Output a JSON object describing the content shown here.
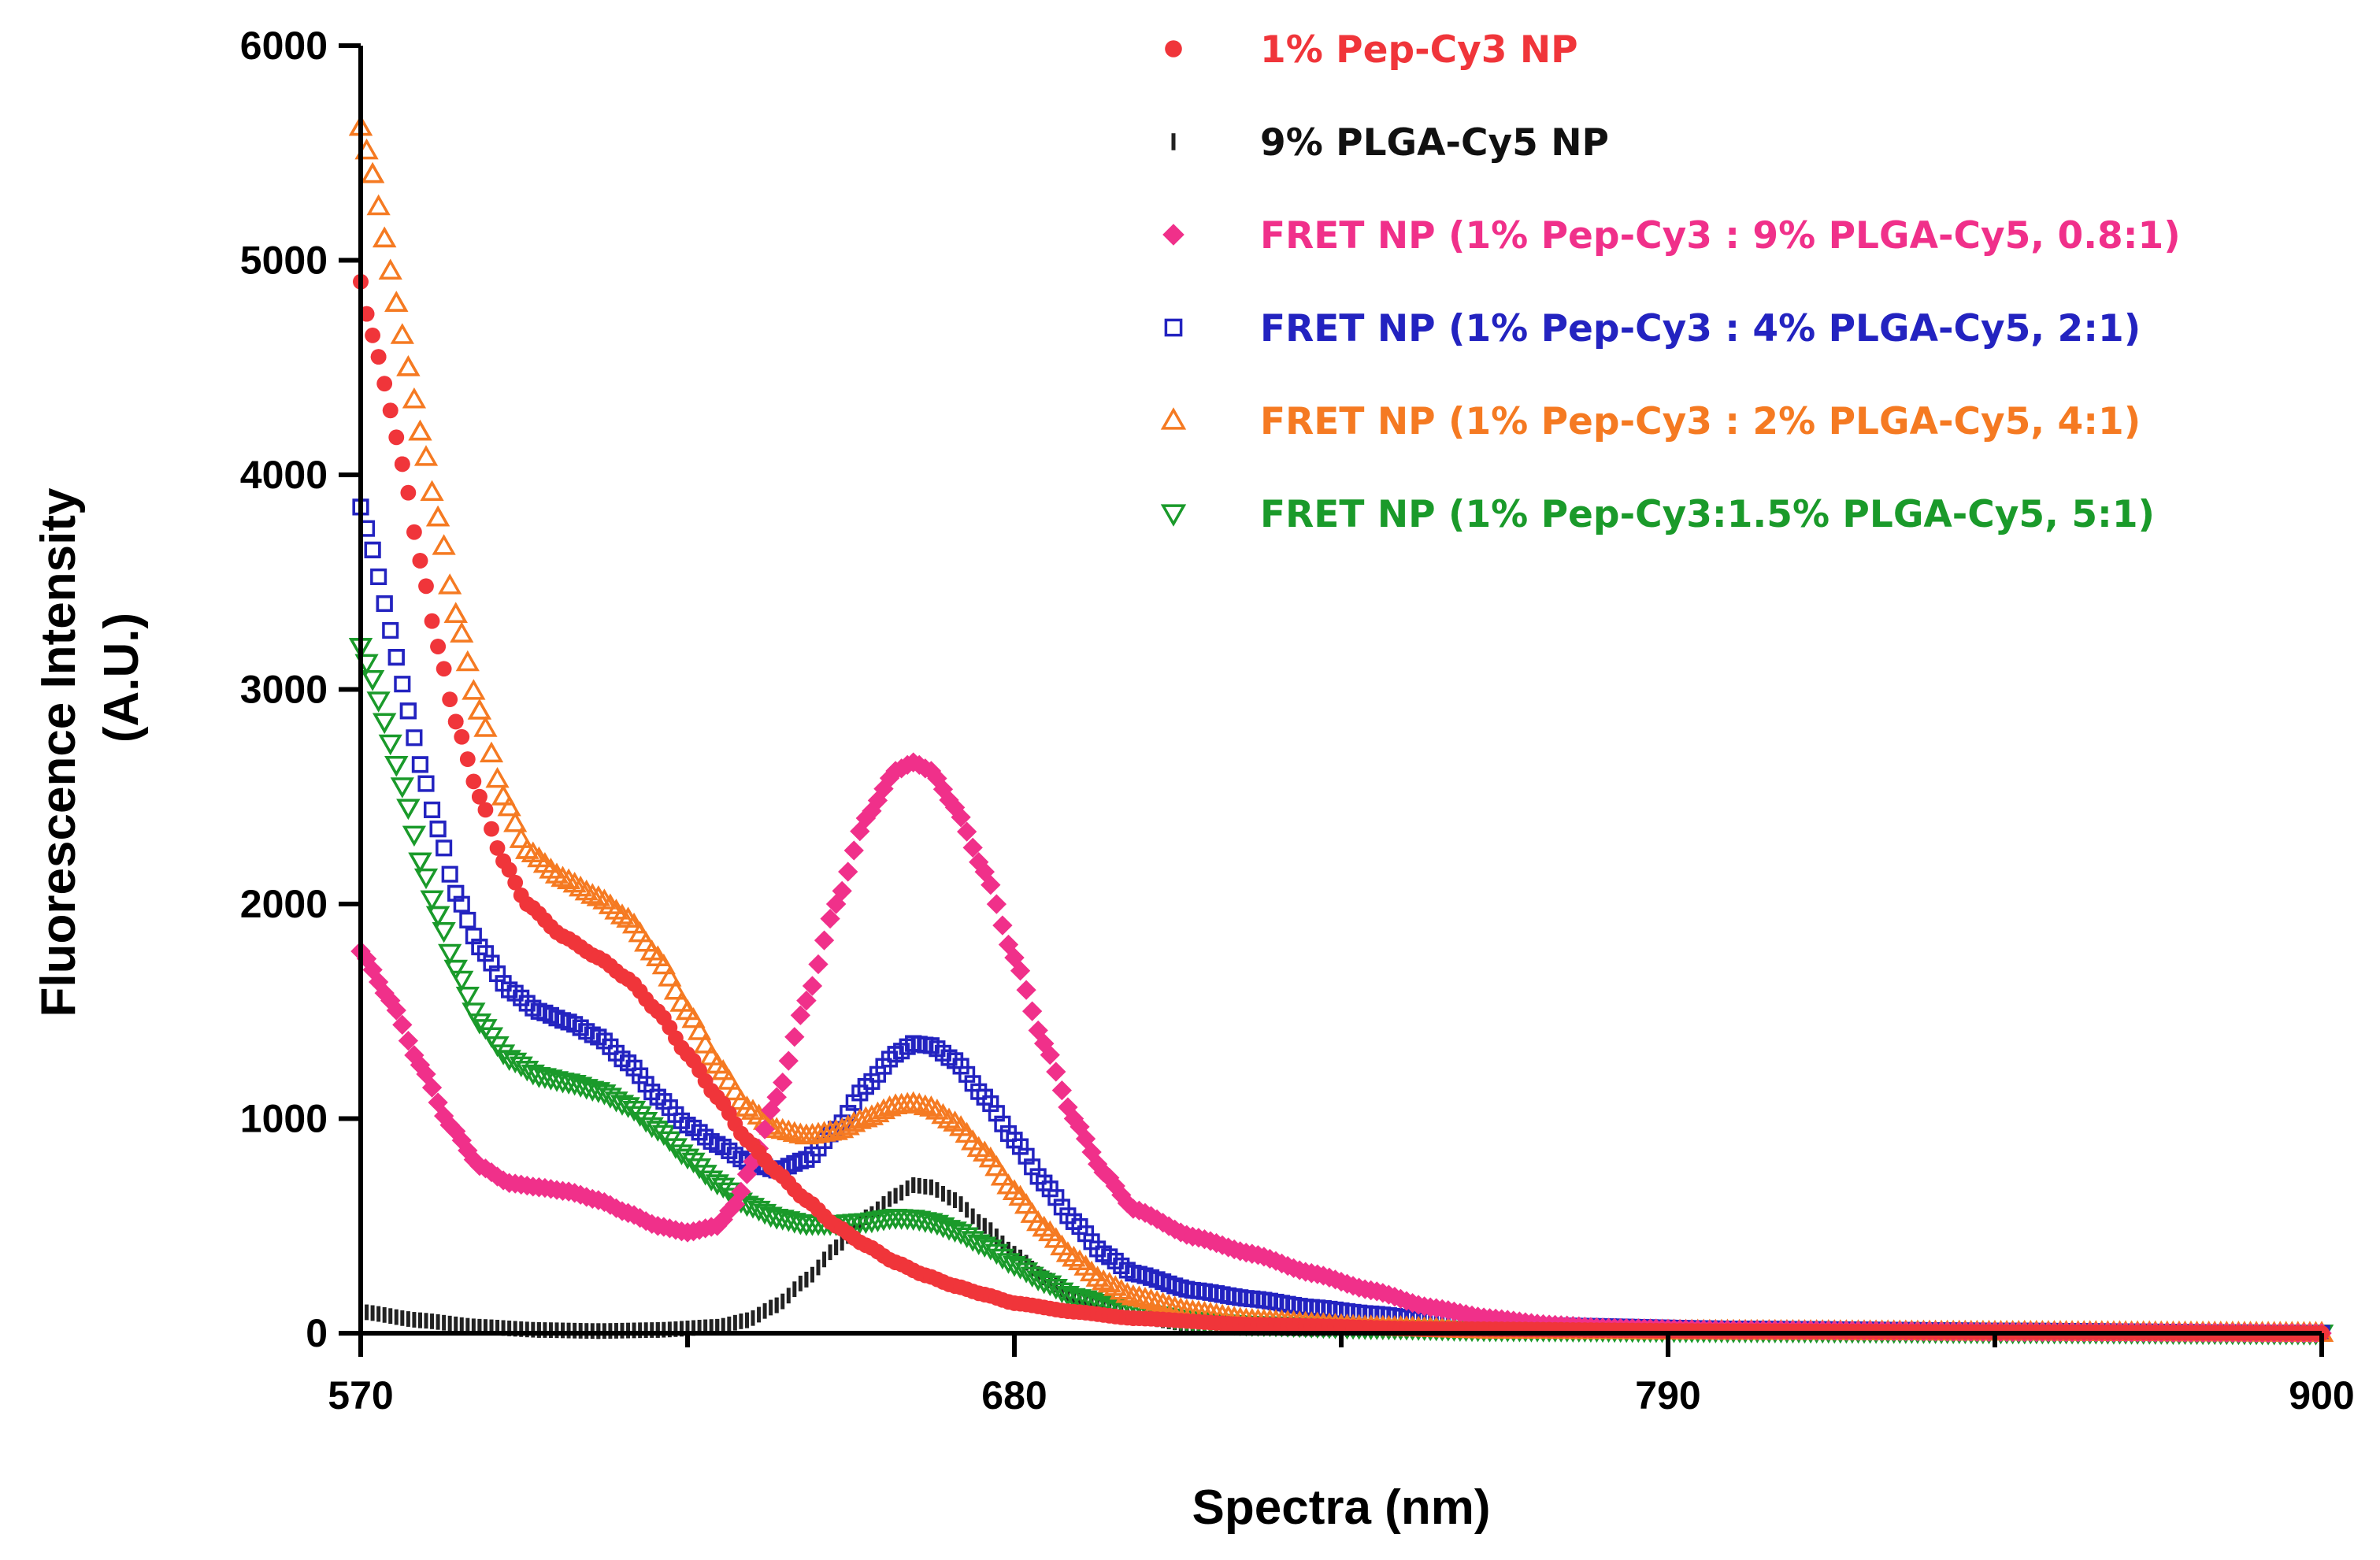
{
  "chart_data": {
    "type": "scatter",
    "title": "",
    "xlabel": "Spectra (nm)",
    "ylabel": "Fluorescence Intensity",
    "ylabel_unit": "(A.U.)",
    "xlim": [
      570,
      900
    ],
    "ylim": [
      0,
      6000
    ],
    "x_ticks": [
      570,
      680,
      790,
      900
    ],
    "x_ticks_minor": [
      625,
      735,
      845
    ],
    "y_ticks": [
      0,
      1000,
      2000,
      3000,
      4000,
      5000,
      6000
    ],
    "grid": false,
    "legend_position": "top-right",
    "series": [
      {
        "name": "1% Pep-Cy3 NP",
        "color": "#f0353a",
        "marker": "circle",
        "points": [
          [
            570,
            4900
          ],
          [
            571,
            4750
          ],
          [
            573,
            4550
          ],
          [
            575,
            4300
          ],
          [
            577,
            4050
          ],
          [
            580,
            3600
          ],
          [
            583,
            3200
          ],
          [
            586,
            2850
          ],
          [
            590,
            2500
          ],
          [
            594,
            2200
          ],
          [
            598,
            2000
          ],
          [
            604,
            1850
          ],
          [
            610,
            1750
          ],
          [
            615,
            1650
          ],
          [
            620,
            1500
          ],
          [
            625,
            1300
          ],
          [
            630,
            1100
          ],
          [
            635,
            900
          ],
          [
            640,
            750
          ],
          [
            645,
            620
          ],
          [
            650,
            500
          ],
          [
            655,
            410
          ],
          [
            660,
            330
          ],
          [
            665,
            270
          ],
          [
            670,
            220
          ],
          [
            675,
            180
          ],
          [
            680,
            140
          ],
          [
            690,
            100
          ],
          [
            700,
            70
          ],
          [
            720,
            40
          ],
          [
            750,
            20
          ],
          [
            800,
            10
          ],
          [
            850,
            5
          ],
          [
            900,
            0
          ]
        ]
      },
      {
        "name": "9% PLGA-Cy5 NP",
        "color": "#222222",
        "marker": "tick",
        "points": [
          [
            570,
            100
          ],
          [
            580,
            60
          ],
          [
            590,
            30
          ],
          [
            600,
            15
          ],
          [
            610,
            10
          ],
          [
            620,
            15
          ],
          [
            630,
            30
          ],
          [
            635,
            60
          ],
          [
            640,
            130
          ],
          [
            645,
            250
          ],
          [
            650,
            400
          ],
          [
            655,
            540
          ],
          [
            660,
            640
          ],
          [
            663,
            690
          ],
          [
            666,
            680
          ],
          [
            670,
            620
          ],
          [
            675,
            500
          ],
          [
            680,
            370
          ],
          [
            685,
            260
          ],
          [
            690,
            170
          ],
          [
            700,
            80
          ],
          [
            710,
            40
          ],
          [
            730,
            20
          ],
          [
            760,
            10
          ],
          [
            800,
            5
          ],
          [
            900,
            0
          ]
        ]
      },
      {
        "name": "FRET NP (1% Pep-Cy3 : 9% PLGA-Cy5, 0.8:1)",
        "color": "#f0308a",
        "marker": "diamond",
        "points": [
          [
            570,
            1780
          ],
          [
            575,
            1550
          ],
          [
            580,
            1250
          ],
          [
            585,
            970
          ],
          [
            590,
            780
          ],
          [
            595,
            700
          ],
          [
            600,
            680
          ],
          [
            605,
            660
          ],
          [
            610,
            620
          ],
          [
            615,
            560
          ],
          [
            620,
            500
          ],
          [
            625,
            470
          ],
          [
            630,
            500
          ],
          [
            633,
            600
          ],
          [
            636,
            800
          ],
          [
            640,
            1100
          ],
          [
            645,
            1550
          ],
          [
            650,
            2000
          ],
          [
            655,
            2400
          ],
          [
            660,
            2620
          ],
          [
            663,
            2660
          ],
          [
            666,
            2620
          ],
          [
            670,
            2450
          ],
          [
            675,
            2150
          ],
          [
            680,
            1750
          ],
          [
            685,
            1350
          ],
          [
            690,
            1000
          ],
          [
            695,
            750
          ],
          [
            700,
            580
          ],
          [
            710,
            450
          ],
          [
            720,
            370
          ],
          [
            730,
            280
          ],
          [
            740,
            200
          ],
          [
            750,
            120
          ],
          [
            760,
            70
          ],
          [
            770,
            40
          ],
          [
            780,
            25
          ],
          [
            800,
            15
          ],
          [
            850,
            5
          ],
          [
            900,
            0
          ]
        ]
      },
      {
        "name": "FRET NP (1% Pep-Cy3 : 4% PLGA-Cy5, 2:1)",
        "color": "#2323c0",
        "marker": "square",
        "points": [
          [
            570,
            3850
          ],
          [
            572,
            3650
          ],
          [
            574,
            3400
          ],
          [
            576,
            3150
          ],
          [
            578,
            2900
          ],
          [
            580,
            2650
          ],
          [
            583,
            2350
          ],
          [
            586,
            2050
          ],
          [
            590,
            1800
          ],
          [
            595,
            1600
          ],
          [
            600,
            1500
          ],
          [
            605,
            1450
          ],
          [
            610,
            1380
          ],
          [
            615,
            1260
          ],
          [
            620,
            1100
          ],
          [
            625,
            970
          ],
          [
            630,
            880
          ],
          [
            635,
            800
          ],
          [
            640,
            760
          ],
          [
            645,
            810
          ],
          [
            650,
            950
          ],
          [
            655,
            1150
          ],
          [
            660,
            1300
          ],
          [
            663,
            1350
          ],
          [
            666,
            1340
          ],
          [
            670,
            1270
          ],
          [
            675,
            1100
          ],
          [
            680,
            900
          ],
          [
            685,
            700
          ],
          [
            690,
            520
          ],
          [
            695,
            370
          ],
          [
            700,
            280
          ],
          [
            710,
            200
          ],
          [
            720,
            160
          ],
          [
            730,
            120
          ],
          [
            740,
            90
          ],
          [
            750,
            60
          ],
          [
            770,
            35
          ],
          [
            800,
            20
          ],
          [
            850,
            10
          ],
          [
            900,
            0
          ]
        ]
      },
      {
        "name": "FRET NP (1% Pep-Cy3 : 2% PLGA-Cy5, 4:1)",
        "color": "#f57a22",
        "marker": "triangle-up",
        "points": [
          [
            570,
            5620
          ],
          [
            572,
            5400
          ],
          [
            574,
            5100
          ],
          [
            576,
            4800
          ],
          [
            578,
            4500
          ],
          [
            580,
            4200
          ],
          [
            583,
            3800
          ],
          [
            586,
            3350
          ],
          [
            590,
            2900
          ],
          [
            594,
            2500
          ],
          [
            598,
            2250
          ],
          [
            604,
            2120
          ],
          [
            610,
            2030
          ],
          [
            615,
            1930
          ],
          [
            620,
            1750
          ],
          [
            625,
            1500
          ],
          [
            630,
            1250
          ],
          [
            635,
            1050
          ],
          [
            640,
            950
          ],
          [
            645,
            920
          ],
          [
            650,
            940
          ],
          [
            655,
            1000
          ],
          [
            660,
            1060
          ],
          [
            663,
            1070
          ],
          [
            666,
            1050
          ],
          [
            670,
            980
          ],
          [
            675,
            840
          ],
          [
            680,
            660
          ],
          [
            685,
            490
          ],
          [
            690,
            350
          ],
          [
            695,
            240
          ],
          [
            700,
            170
          ],
          [
            710,
            100
          ],
          [
            720,
            60
          ],
          [
            740,
            30
          ],
          [
            760,
            15
          ],
          [
            800,
            10
          ],
          [
            850,
            5
          ],
          [
            900,
            0
          ]
        ]
      },
      {
        "name": "FRET NP (1% Pep-Cy3:1.5% PLGA-Cy5, 5:1)",
        "color": "#1a9a2a",
        "marker": "triangle-down",
        "points": [
          [
            570,
            3200
          ],
          [
            572,
            3050
          ],
          [
            574,
            2850
          ],
          [
            576,
            2650
          ],
          [
            578,
            2450
          ],
          [
            580,
            2200
          ],
          [
            583,
            1950
          ],
          [
            586,
            1700
          ],
          [
            590,
            1450
          ],
          [
            595,
            1280
          ],
          [
            600,
            1200
          ],
          [
            605,
            1170
          ],
          [
            610,
            1130
          ],
          [
            615,
            1060
          ],
          [
            620,
            950
          ],
          [
            625,
            820
          ],
          [
            630,
            700
          ],
          [
            635,
            600
          ],
          [
            640,
            540
          ],
          [
            645,
            510
          ],
          [
            650,
            510
          ],
          [
            655,
            520
          ],
          [
            660,
            540
          ],
          [
            663,
            535
          ],
          [
            666,
            520
          ],
          [
            670,
            480
          ],
          [
            675,
            410
          ],
          [
            680,
            320
          ],
          [
            685,
            240
          ],
          [
            690,
            170
          ],
          [
            700,
            100
          ],
          [
            710,
            60
          ],
          [
            720,
            40
          ],
          [
            740,
            25
          ],
          [
            760,
            15
          ],
          [
            800,
            10
          ],
          [
            850,
            5
          ],
          [
            900,
            0
          ]
        ]
      }
    ]
  }
}
